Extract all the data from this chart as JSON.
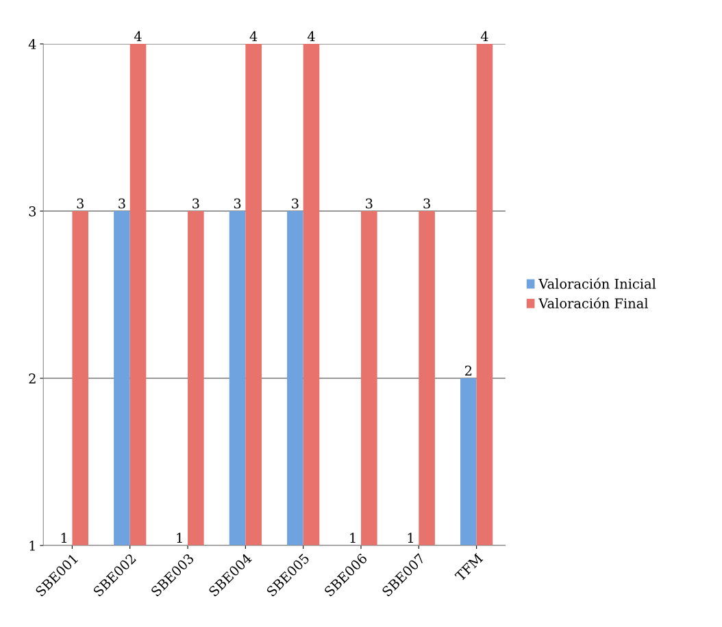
{
  "chart_data": {
    "type": "bar",
    "categories": [
      "SBE001",
      "SBE002",
      "SBE003",
      "SBE004",
      "SBE005",
      "SBE006",
      "SBE007",
      "TFM"
    ],
    "series": [
      {
        "name": "Valoración Inicial",
        "color": "#6fa3e0",
        "values": [
          1,
          3,
          1,
          3,
          3,
          1,
          1,
          2
        ]
      },
      {
        "name": "Valoración Final",
        "color": "#e8736c",
        "values": [
          3,
          4,
          3,
          4,
          4,
          3,
          3,
          4
        ]
      }
    ],
    "ylim": [
      1,
      4
    ],
    "yticks": [
      1,
      2,
      3,
      4
    ],
    "grid": "y",
    "legend": "right",
    "data_labels": true
  }
}
